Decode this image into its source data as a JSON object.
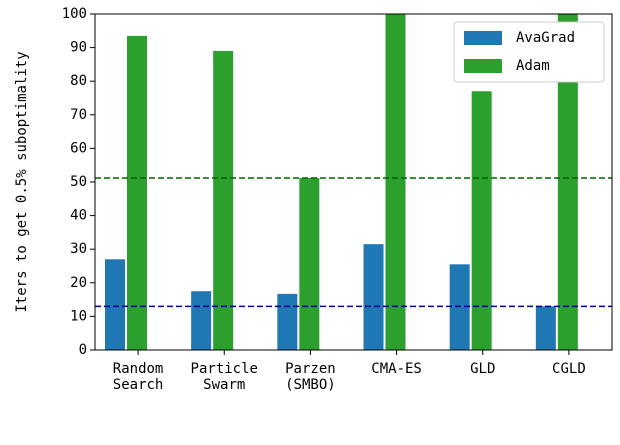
{
  "chart_data": {
    "type": "bar",
    "ylabel": "Iters to get 0.5% suboptimality",
    "categories": [
      [
        "Random",
        "Search"
      ],
      [
        "Particle",
        "Swarm"
      ],
      [
        "Parzen",
        "(SMBO)"
      ],
      [
        "CMA-ES"
      ],
      [
        "GLD"
      ],
      [
        "CGLD"
      ]
    ],
    "series": [
      {
        "name": "AvaGrad",
        "color": "#1f77b4",
        "values": [
          27,
          17.5,
          16.7,
          31.5,
          25.5,
          13
        ]
      },
      {
        "name": "Adam",
        "color": "#2ca02c",
        "values": [
          93.5,
          89,
          51.2,
          100,
          77,
          100
        ]
      }
    ],
    "hlines": [
      {
        "value": 51.2,
        "color": "#006400"
      },
      {
        "value": 13,
        "color": "#00008b"
      }
    ],
    "ylim": [
      0,
      100
    ],
    "yticks": [
      0,
      10,
      20,
      30,
      40,
      50,
      60,
      70,
      80,
      90,
      100
    ],
    "legend": "upper right"
  }
}
